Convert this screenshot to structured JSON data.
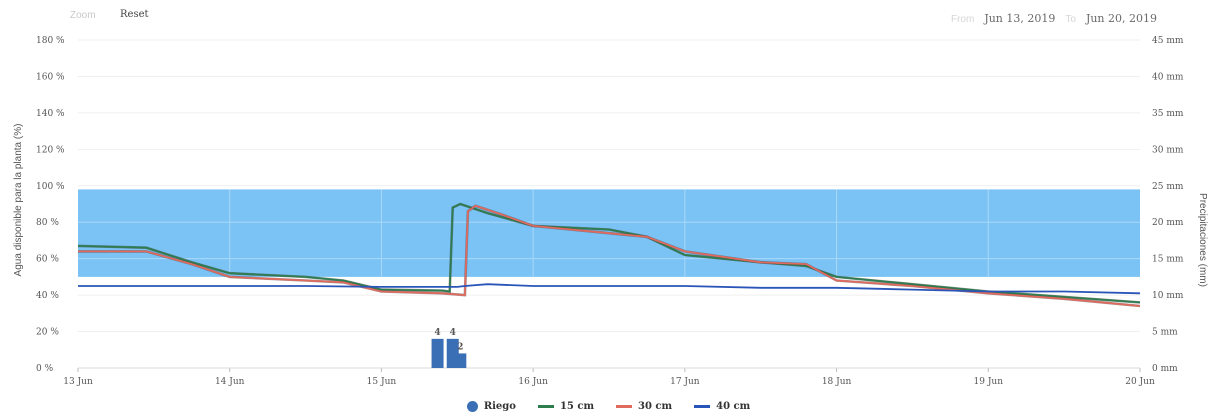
{
  "toolbar": {
    "zoom_label": "Zoom",
    "reset_label": "Reset",
    "from_label": "From",
    "from_value": "Jun 13, 2019",
    "to_label": "To",
    "to_value": "Jun 20, 2019"
  },
  "colors": {
    "band": "#7cc3f5",
    "band_grid": "#a9d8f8",
    "riego": "#3a6fb5",
    "s15": "#2e7d4f",
    "s30": "#e06a5e",
    "s40": "#2a55b8",
    "dark": "#444444"
  },
  "chart_data": {
    "type": "line",
    "title": "",
    "xlabel": "",
    "ylabel": "Agua disponible para la planta (%)",
    "y2label": "Precipitaciones (mm)",
    "ylim": [
      0,
      180
    ],
    "y2lim": [
      0,
      45
    ],
    "x_ticks": [
      "13 Jun",
      "14 Jun",
      "15 Jun",
      "16 Jun",
      "17 Jun",
      "18 Jun",
      "19 Jun",
      "20 Jun"
    ],
    "y_ticks": [
      "0 %",
      "20 %",
      "40 %",
      "60 %",
      "80 %",
      "100 %",
      "120 %",
      "140 %",
      "160 %",
      "180 %"
    ],
    "y2_ticks": [
      "0 mm",
      "5 mm",
      "10 mm",
      "15 mm",
      "20 mm",
      "25 mm",
      "30 mm",
      "35 mm",
      "40 mm",
      "45 mm"
    ],
    "band": {
      "from": 50,
      "to": 98
    },
    "series": [
      {
        "name": "15 cm",
        "points": [
          [
            0,
            67
          ],
          [
            0.45,
            66
          ],
          [
            0.75,
            58
          ],
          [
            1.0,
            52
          ],
          [
            1.5,
            50
          ],
          [
            1.75,
            48
          ],
          [
            2.0,
            43
          ],
          [
            2.4,
            42.5
          ],
          [
            2.45,
            42
          ],
          [
            2.47,
            88
          ],
          [
            2.52,
            90
          ],
          [
            2.7,
            85
          ],
          [
            3.0,
            78
          ],
          [
            3.5,
            76
          ],
          [
            3.75,
            72
          ],
          [
            4.0,
            62
          ],
          [
            4.5,
            58
          ],
          [
            4.8,
            56
          ],
          [
            5.0,
            50
          ],
          [
            5.5,
            46
          ],
          [
            6.0,
            42
          ],
          [
            6.5,
            39
          ],
          [
            7.0,
            36
          ]
        ]
      },
      {
        "name": "30 cm",
        "points": [
          [
            0,
            64
          ],
          [
            0.45,
            64
          ],
          [
            0.75,
            57
          ],
          [
            1.0,
            50
          ],
          [
            1.5,
            48
          ],
          [
            1.75,
            47
          ],
          [
            2.0,
            42
          ],
          [
            2.4,
            41
          ],
          [
            2.55,
            40
          ],
          [
            2.57,
            86
          ],
          [
            2.62,
            89
          ],
          [
            2.8,
            84
          ],
          [
            3.0,
            78
          ],
          [
            3.5,
            74
          ],
          [
            3.75,
            72
          ],
          [
            4.0,
            64
          ],
          [
            4.5,
            58
          ],
          [
            4.8,
            57
          ],
          [
            5.0,
            48
          ],
          [
            5.5,
            45
          ],
          [
            6.0,
            41
          ],
          [
            6.5,
            38
          ],
          [
            7.0,
            34
          ]
        ]
      },
      {
        "name": "40 cm",
        "points": [
          [
            0,
            45
          ],
          [
            0.5,
            45
          ],
          [
            1.0,
            45
          ],
          [
            1.5,
            45
          ],
          [
            2.0,
            44.5
          ],
          [
            2.5,
            44.5
          ],
          [
            2.55,
            45
          ],
          [
            2.7,
            46
          ],
          [
            3.0,
            45
          ],
          [
            3.5,
            45
          ],
          [
            4.0,
            45
          ],
          [
            4.5,
            44
          ],
          [
            5.0,
            44
          ],
          [
            5.5,
            43
          ],
          [
            6.0,
            42
          ],
          [
            6.5,
            42
          ],
          [
            7.0,
            41
          ]
        ]
      }
    ],
    "riego": {
      "name": "Riego",
      "bars": [
        {
          "x": 2.37,
          "mm": 4,
          "label": "4"
        },
        {
          "x": 2.47,
          "mm": 4,
          "label": "4"
        },
        {
          "x": 2.52,
          "mm": 2,
          "label": "2"
        }
      ]
    },
    "legend": {
      "position": "bottom-center",
      "items": [
        "Riego",
        "15 cm",
        "30 cm",
        "40 cm"
      ]
    }
  }
}
